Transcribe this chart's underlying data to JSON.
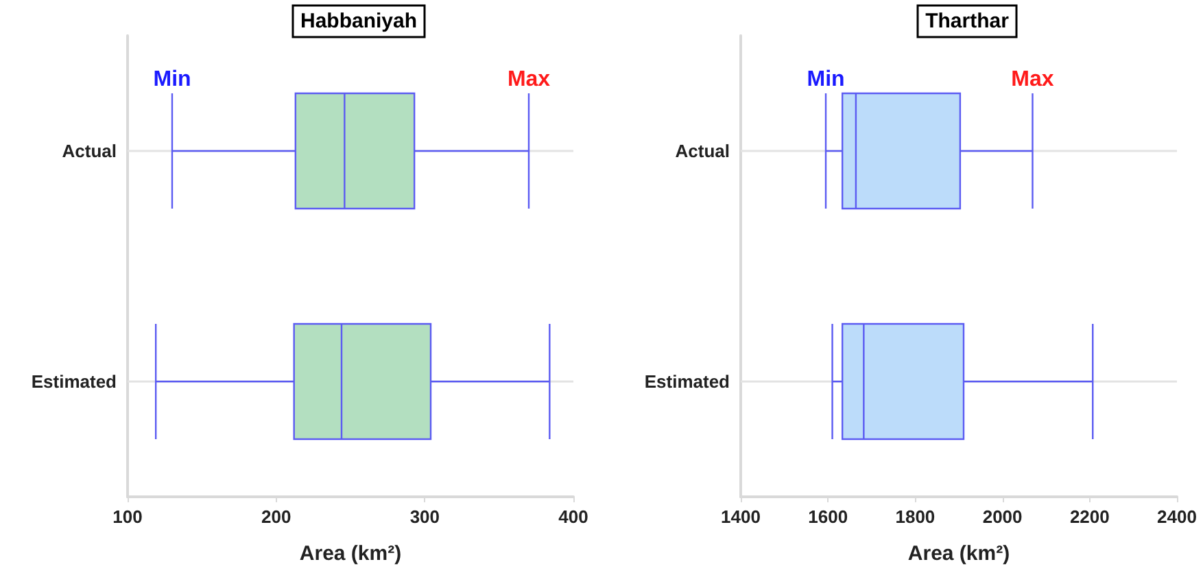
{
  "chart_data": [
    {
      "type": "box",
      "title": "Habbaniyah",
      "orientation": "horizontal",
      "categories": [
        "Actual",
        "Estimated"
      ],
      "xlabel": "Area (km²)",
      "xlim": [
        100,
        400
      ],
      "xticks": [
        100,
        200,
        300,
        400
      ],
      "grid": "y",
      "series": [
        {
          "color": "#b3dfc0",
          "boxes": [
            {
              "low": 130,
              "q1": 213,
              "median": 246,
              "q3": 293,
              "high": 370
            },
            {
              "low": 119,
              "q1": 212,
              "median": 244,
              "q3": 304,
              "high": 384
            }
          ]
        }
      ],
      "annotations": [
        {
          "text": "Min",
          "x": 130,
          "y": "Actual"
        },
        {
          "text": "Max",
          "x": 370,
          "y": "Actual"
        }
      ]
    },
    {
      "type": "box",
      "title": "Tharthar",
      "orientation": "horizontal",
      "categories": [
        "Actual",
        "Estimated"
      ],
      "xlabel": "Area (km²)",
      "xlim": [
        1400,
        2400
      ],
      "xticks": [
        1400,
        1600,
        1800,
        2000,
        2200,
        2400
      ],
      "grid": "y",
      "series": [
        {
          "color": "#bcdcfa",
          "boxes": [
            {
              "low": 1595,
              "q1": 1633,
              "median": 1664,
              "q3": 1903,
              "high": 2069
            },
            {
              "low": 1610,
              "q1": 1633,
              "median": 1682,
              "q3": 1911,
              "high": 2207
            }
          ]
        }
      ],
      "annotations": [
        {
          "text": "Min",
          "x": 1595,
          "y": "Actual"
        },
        {
          "text": "Max",
          "x": 2069,
          "y": "Actual"
        }
      ]
    }
  ]
}
